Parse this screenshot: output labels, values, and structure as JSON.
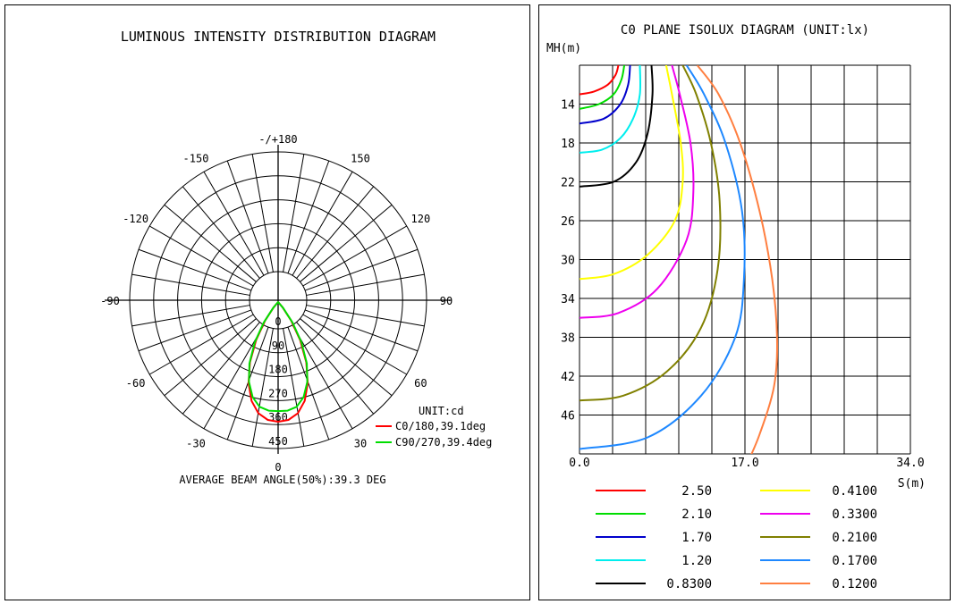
{
  "chart_data": [
    {
      "type": "polar",
      "title": "LUMINOUS INTENSITY DISTRIBUTION DIAGRAM",
      "angle_labels": [
        {
          "deg": 180,
          "text": "-/+180"
        },
        {
          "deg": 150,
          "text": "150"
        },
        {
          "deg": -150,
          "text": "-150"
        },
        {
          "deg": 120,
          "text": "120"
        },
        {
          "deg": -120,
          "text": "-120"
        },
        {
          "deg": 90,
          "text": "90"
        },
        {
          "deg": -90,
          "text": "-90"
        },
        {
          "deg": 60,
          "text": "60"
        },
        {
          "deg": -60,
          "text": "-60"
        },
        {
          "deg": 30,
          "text": "30"
        },
        {
          "deg": -30,
          "text": "-30"
        },
        {
          "deg": 0,
          "text": "0"
        }
      ],
      "radial_max": 450,
      "radial_ticks": [
        "0",
        "90",
        "180",
        "270",
        "360",
        "450"
      ],
      "unit_label": "UNIT:cd",
      "series": [
        {
          "name": "C0/180,39.1deg",
          "color": "#ff0000",
          "theta": [
            0,
            5,
            10,
            15,
            20,
            25,
            30,
            35,
            40,
            45
          ],
          "values": [
            450,
            445,
            425,
            385,
            325,
            250,
            165,
            85,
            25,
            0
          ]
        },
        {
          "name": "C90/270,39.4deg",
          "color": "#00dd00",
          "theta": [
            0,
            5,
            10,
            15,
            20,
            25,
            30,
            35,
            40,
            45
          ],
          "values": [
            410,
            410,
            400,
            370,
            320,
            255,
            175,
            95,
            30,
            0
          ]
        }
      ],
      "footer": "AVERAGE BEAM ANGLE(50%):39.3 DEG"
    },
    {
      "type": "contour",
      "title": "C0 PLANE ISOLUX DIAGRAM (UNIT:lx)",
      "ylabel": "MH(m)",
      "xlabel": "S(m)",
      "xlim": [
        0,
        34
      ],
      "ylim": [
        10,
        50
      ],
      "x_ticks": [
        "0.0",
        "17.0",
        "34.0"
      ],
      "y_ticks": [
        "14",
        "18",
        "22",
        "26",
        "30",
        "34",
        "38",
        "42",
        "46"
      ],
      "series": [
        {
          "name": "2.50",
          "color": "#ff0000",
          "x": [
            4.0,
            3.7,
            2.9,
            1.5,
            0.0
          ],
          "y": [
            10,
            11,
            12,
            12.7,
            13
          ]
        },
        {
          "name": "2.10",
          "color": "#00dd00",
          "x": [
            4.6,
            4.3,
            3.5,
            2.0,
            0.0
          ],
          "y": [
            10,
            11.5,
            13,
            14.0,
            14.5
          ]
        },
        {
          "name": "1.70",
          "color": "#0000cc",
          "x": [
            5.2,
            5.0,
            4.2,
            2.5,
            0.0
          ],
          "y": [
            10,
            12,
            14,
            15.5,
            16
          ]
        },
        {
          "name": "1.20",
          "color": "#00eeee",
          "x": [
            6.2,
            6.2,
            5.5,
            4.2,
            2.3,
            0.0
          ],
          "y": [
            10,
            13,
            15.5,
            17.5,
            18.7,
            19
          ]
        },
        {
          "name": "0.8300",
          "color": "#000000",
          "x": [
            7.4,
            7.5,
            7.0,
            5.8,
            3.5,
            0.0
          ],
          "y": [
            10,
            13,
            17,
            20,
            22,
            22.5
          ]
        },
        {
          "name": "0.4100",
          "color": "#ffff00",
          "x": [
            8.9,
            9.5,
            10.4,
            10.6,
            9.8,
            7.0,
            3.5,
            0.0
          ],
          "y": [
            10,
            13,
            18,
            22,
            26,
            29.5,
            31.5,
            32
          ]
        },
        {
          "name": "0.3300",
          "color": "#ee00ee",
          "x": [
            9.5,
            10.3,
            11.4,
            11.7,
            11.0,
            8.0,
            4.0,
            0.0
          ],
          "y": [
            10,
            13,
            18,
            23,
            28,
            33,
            35.5,
            36
          ]
        },
        {
          "name": "0.2100",
          "color": "#808000",
          "x": [
            10.6,
            12.0,
            13.5,
            14.4,
            14.2,
            12.5,
            9.0,
            4.5,
            0.0
          ],
          "y": [
            10,
            13,
            18,
            24,
            31,
            37,
            41.5,
            44.0,
            44.5
          ]
        },
        {
          "name": "0.1700",
          "color": "#1e88ff",
          "x": [
            11.0,
            12.8,
            15.0,
            16.7,
            16.9,
            16.0,
            12.5,
            7.0,
            0.0
          ],
          "y": [
            10,
            13,
            18,
            25,
            32,
            38,
            44,
            48.3,
            49.5
          ]
        },
        {
          "name": "0.1200",
          "color": "#ff7f40",
          "x": [
            12.1,
            14.3,
            16.5,
            18.5,
            19.8,
            20.3,
            20.0,
            18.5,
            17.0
          ],
          "y": [
            10,
            13,
            18,
            25,
            32,
            38,
            43,
            48,
            51.5
          ]
        }
      ]
    }
  ]
}
